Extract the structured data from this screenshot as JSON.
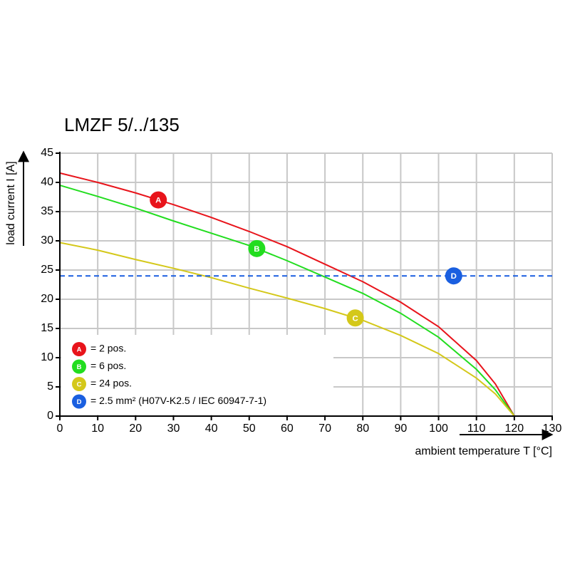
{
  "chart_data": {
    "type": "line",
    "title": "LMZF 5/../135",
    "xlabel": "ambient temperature T [°C]",
    "ylabel": "load current I [A]",
    "x": [
      0,
      10,
      20,
      30,
      40,
      50,
      60,
      70,
      80,
      90,
      100,
      110,
      115,
      120
    ],
    "series": [
      {
        "name": "A",
        "label": "= 2 pos.",
        "color": "#e8141b",
        "marker_x": 26,
        "values": [
          41.6,
          40.0,
          38.2,
          36.2,
          34.0,
          31.6,
          29.0,
          26.0,
          23.0,
          19.5,
          15.3,
          9.5,
          5.5,
          0
        ]
      },
      {
        "name": "B",
        "label": "= 6 pos.",
        "color": "#22dd1f",
        "marker_x": 52,
        "values": [
          39.5,
          37.6,
          35.6,
          33.4,
          31.3,
          29.2,
          26.6,
          23.8,
          21.0,
          17.6,
          13.5,
          8.0,
          4.5,
          0
        ]
      },
      {
        "name": "C",
        "label": "= 24 pos.",
        "color": "#d4c81a",
        "marker_x": 78,
        "values": [
          29.7,
          28.4,
          26.8,
          25.3,
          23.7,
          21.9,
          20.2,
          18.4,
          16.4,
          13.8,
          10.7,
          6.5,
          3.8,
          0
        ]
      },
      {
        "name": "D",
        "label": "= 2.5 mm² (H07V-K2.5 / IEC 60947-7-1)",
        "color": "#1a5fe0",
        "marker_x": 104,
        "dashed": true,
        "x": [
          0,
          130
        ],
        "values": [
          24,
          24
        ]
      }
    ],
    "xlim": [
      0,
      130
    ],
    "xticks": [
      0,
      10,
      20,
      30,
      40,
      50,
      60,
      70,
      80,
      90,
      100,
      110,
      120,
      130
    ],
    "ylim": [
      0,
      45
    ],
    "yticks": [
      0,
      5,
      10,
      15,
      20,
      25,
      30,
      35,
      40,
      45
    ],
    "grid": true
  }
}
